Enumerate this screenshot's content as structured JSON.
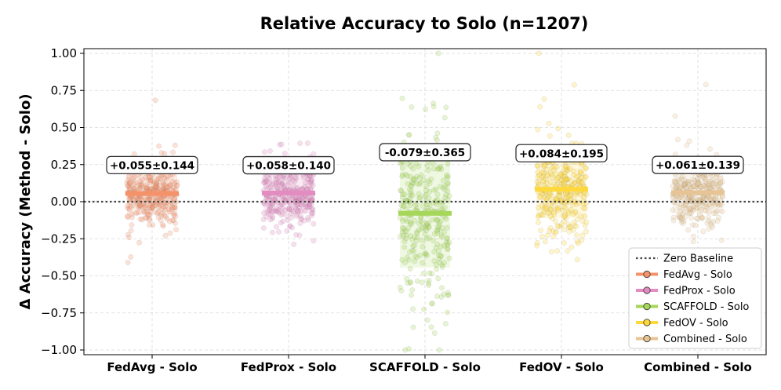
{
  "chart_data": {
    "type": "scatter",
    "title": "Relative Accuracy to Solo (n=1207)",
    "xlabel": "",
    "ylabel": "Δ Accuracy (Method - Solo)",
    "ylim": [
      -1.0,
      1.0
    ],
    "yticks": [
      "1.00",
      "0.75",
      "0.50",
      "0.25",
      "0.00",
      "−0.25",
      "−0.50",
      "−0.75",
      "−1.00"
    ],
    "ytick_values": [
      1.0,
      0.75,
      0.5,
      0.25,
      0.0,
      -0.25,
      -0.5,
      -0.75,
      -1.0
    ],
    "grid": true,
    "legend_position": "bottom-right",
    "baseline": {
      "name": "Zero Baseline",
      "value": 0.0,
      "style": "dotted",
      "color": "#444444"
    },
    "categories": [
      "FedAvg - Solo",
      "FedProx - Solo",
      "SCAFFOLD - Solo",
      "FedOV - Solo",
      "Combined - Solo"
    ],
    "series": [
      {
        "name": "FedAvg - Solo",
        "mean": 0.055,
        "std": 0.144,
        "label": "+0.055±0.144",
        "color": "#f4926a",
        "n": 1207
      },
      {
        "name": "FedProx - Solo",
        "mean": 0.058,
        "std": 0.14,
        "label": "+0.058±0.140",
        "color": "#e28cc2",
        "n": 1207
      },
      {
        "name": "SCAFFOLD - Solo",
        "mean": -0.079,
        "std": 0.365,
        "label": "-0.079±0.365",
        "color": "#a6d75a",
        "n": 1207
      },
      {
        "name": "FedOV - Solo",
        "mean": 0.084,
        "std": 0.195,
        "label": "+0.084±0.195",
        "color": "#ffd93b",
        "n": 1207
      },
      {
        "name": "Combined - Solo",
        "mean": 0.061,
        "std": 0.139,
        "label": "+0.061±0.139",
        "color": "#e6c495",
        "n": 1207
      }
    ]
  }
}
